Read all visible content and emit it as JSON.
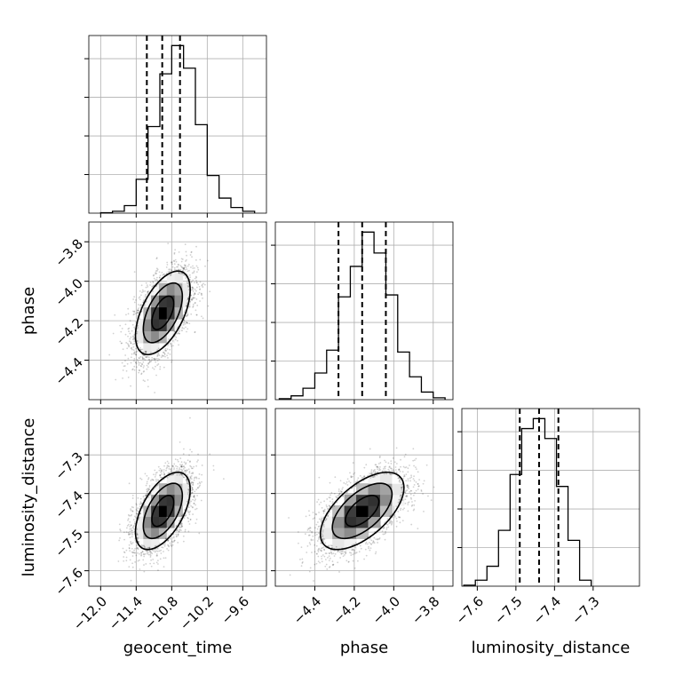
{
  "chart_data": {
    "type": "corner",
    "parameters": [
      "geocent_time",
      "phase",
      "luminosity_distance"
    ],
    "axis_labels": {
      "x": [
        "geocent_time",
        "phase",
        "luminosity_distance"
      ],
      "y": [
        "",
        "phase",
        "luminosity_distance"
      ]
    },
    "ticks": {
      "geocent_time": [
        -12.0,
        -11.4,
        -10.8,
        -10.2,
        -9.6
      ],
      "phase": [
        -4.4,
        -4.2,
        -4.0,
        -3.8
      ],
      "luminosity_distance": [
        -7.6,
        -7.5,
        -7.4,
        -7.3
      ]
    },
    "tick_labels": {
      "geocent_time": [
        "−12.0",
        "−11.4",
        "−10.8",
        "−10.2",
        "−9.6"
      ],
      "phase": [
        "−4.4",
        "−4.2",
        "−4.0",
        "−3.8"
      ],
      "luminosity_distance": [
        "−7.6",
        "−7.5",
        "−7.4",
        "−7.3"
      ]
    },
    "ranges": {
      "geocent_time": [
        -12.2,
        -9.2
      ],
      "phase": [
        -4.6,
        -3.7
      ],
      "luminosity_distance": [
        -7.64,
        -7.18
      ]
    },
    "grid": true,
    "histograms": {
      "geocent_time": {
        "bin_edges": [
          -12.0,
          -11.8,
          -11.6,
          -11.4,
          -11.2,
          -11.0,
          -10.8,
          -10.6,
          -10.4,
          -10.2,
          -10.0,
          -9.8,
          -9.6,
          -9.4
        ],
        "counts": [
          0.2,
          1.0,
          4.0,
          18,
          46,
          74,
          89,
          77,
          47,
          20,
          8,
          3,
          1
        ],
        "quantiles": [
          -11.22,
          -10.96,
          -10.66
        ]
      },
      "phase": {
        "bin_edges": [
          -4.58,
          -4.52,
          -4.46,
          -4.4,
          -4.34,
          -4.28,
          -4.22,
          -4.16,
          -4.1,
          -4.04,
          -3.98,
          -3.92,
          -3.86,
          -3.8,
          -3.74
        ],
        "counts": [
          0.5,
          2,
          6,
          14,
          26,
          54,
          70,
          88,
          77,
          55,
          25,
          12,
          4,
          1
        ],
        "quantiles": [
          -4.28,
          -4.16,
          -4.04
        ]
      },
      "luminosity_distance": {
        "bin_edges": [
          -7.635,
          -7.605,
          -7.575,
          -7.545,
          -7.515,
          -7.485,
          -7.455,
          -7.425,
          -7.395,
          -7.365,
          -7.335,
          -7.305
        ],
        "counts": [
          0.5,
          3,
          10,
          28,
          56,
          79,
          84,
          74,
          50,
          23,
          3
        ],
        "quantiles": [
          -7.49,
          -7.44,
          -7.39
        ]
      }
    },
    "posterior": {
      "means": {
        "geocent_time": -10.95,
        "phase": -4.16,
        "luminosity_distance": -7.445
      },
      "stds": {
        "geocent_time": 0.24,
        "phase": 0.11,
        "luminosity_distance": 0.052
      },
      "correlation": {
        "geocent_time|phase": 0.55,
        "geocent_time|luminosity_distance": 0.55,
        "phase|luminosity_distance": 0.6
      }
    }
  }
}
